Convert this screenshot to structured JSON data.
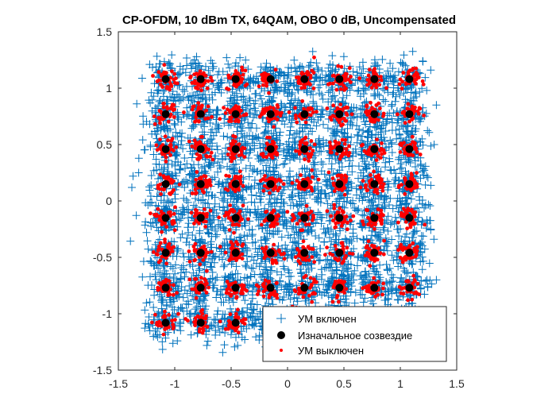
{
  "chart_data": {
    "type": "scatter",
    "title": "CP-OFDM, 10 dBm TX, 64QAM, OBO 0 dB, Uncompensated",
    "xlabel": "",
    "ylabel": "",
    "xlim": [
      -1.5,
      1.5
    ],
    "ylim": [
      -1.5,
      1.5
    ],
    "x_ticks": [
      -1.5,
      -1,
      -0.5,
      0,
      0.5,
      1,
      1.5
    ],
    "y_ticks": [
      -1.5,
      -1,
      -0.5,
      0,
      0.5,
      1,
      1.5
    ],
    "x_tick_labels": [
      "-1.5",
      "-1",
      "-0.5",
      "0",
      "0.5",
      "1",
      "1.5"
    ],
    "y_tick_labels": [
      "-1.5",
      "-1",
      "-0.5",
      "0",
      "0.5",
      "1",
      "1.5"
    ],
    "grid": false,
    "legend_position": "bottom-right",
    "constellation_levels": [
      -1.08,
      -0.77,
      -0.46,
      -0.15,
      0.15,
      0.46,
      0.77,
      1.08
    ],
    "series": [
      {
        "name": "УМ включен",
        "marker": "plus",
        "color": "#0072BD",
        "spread": 0.09
      },
      {
        "name": "Изначальное созвездие",
        "marker": "filled-circle",
        "color": "#000000"
      },
      {
        "name": "УМ выключен",
        "marker": "dot",
        "color": "#FF0000",
        "spread": 0.045
      }
    ]
  }
}
